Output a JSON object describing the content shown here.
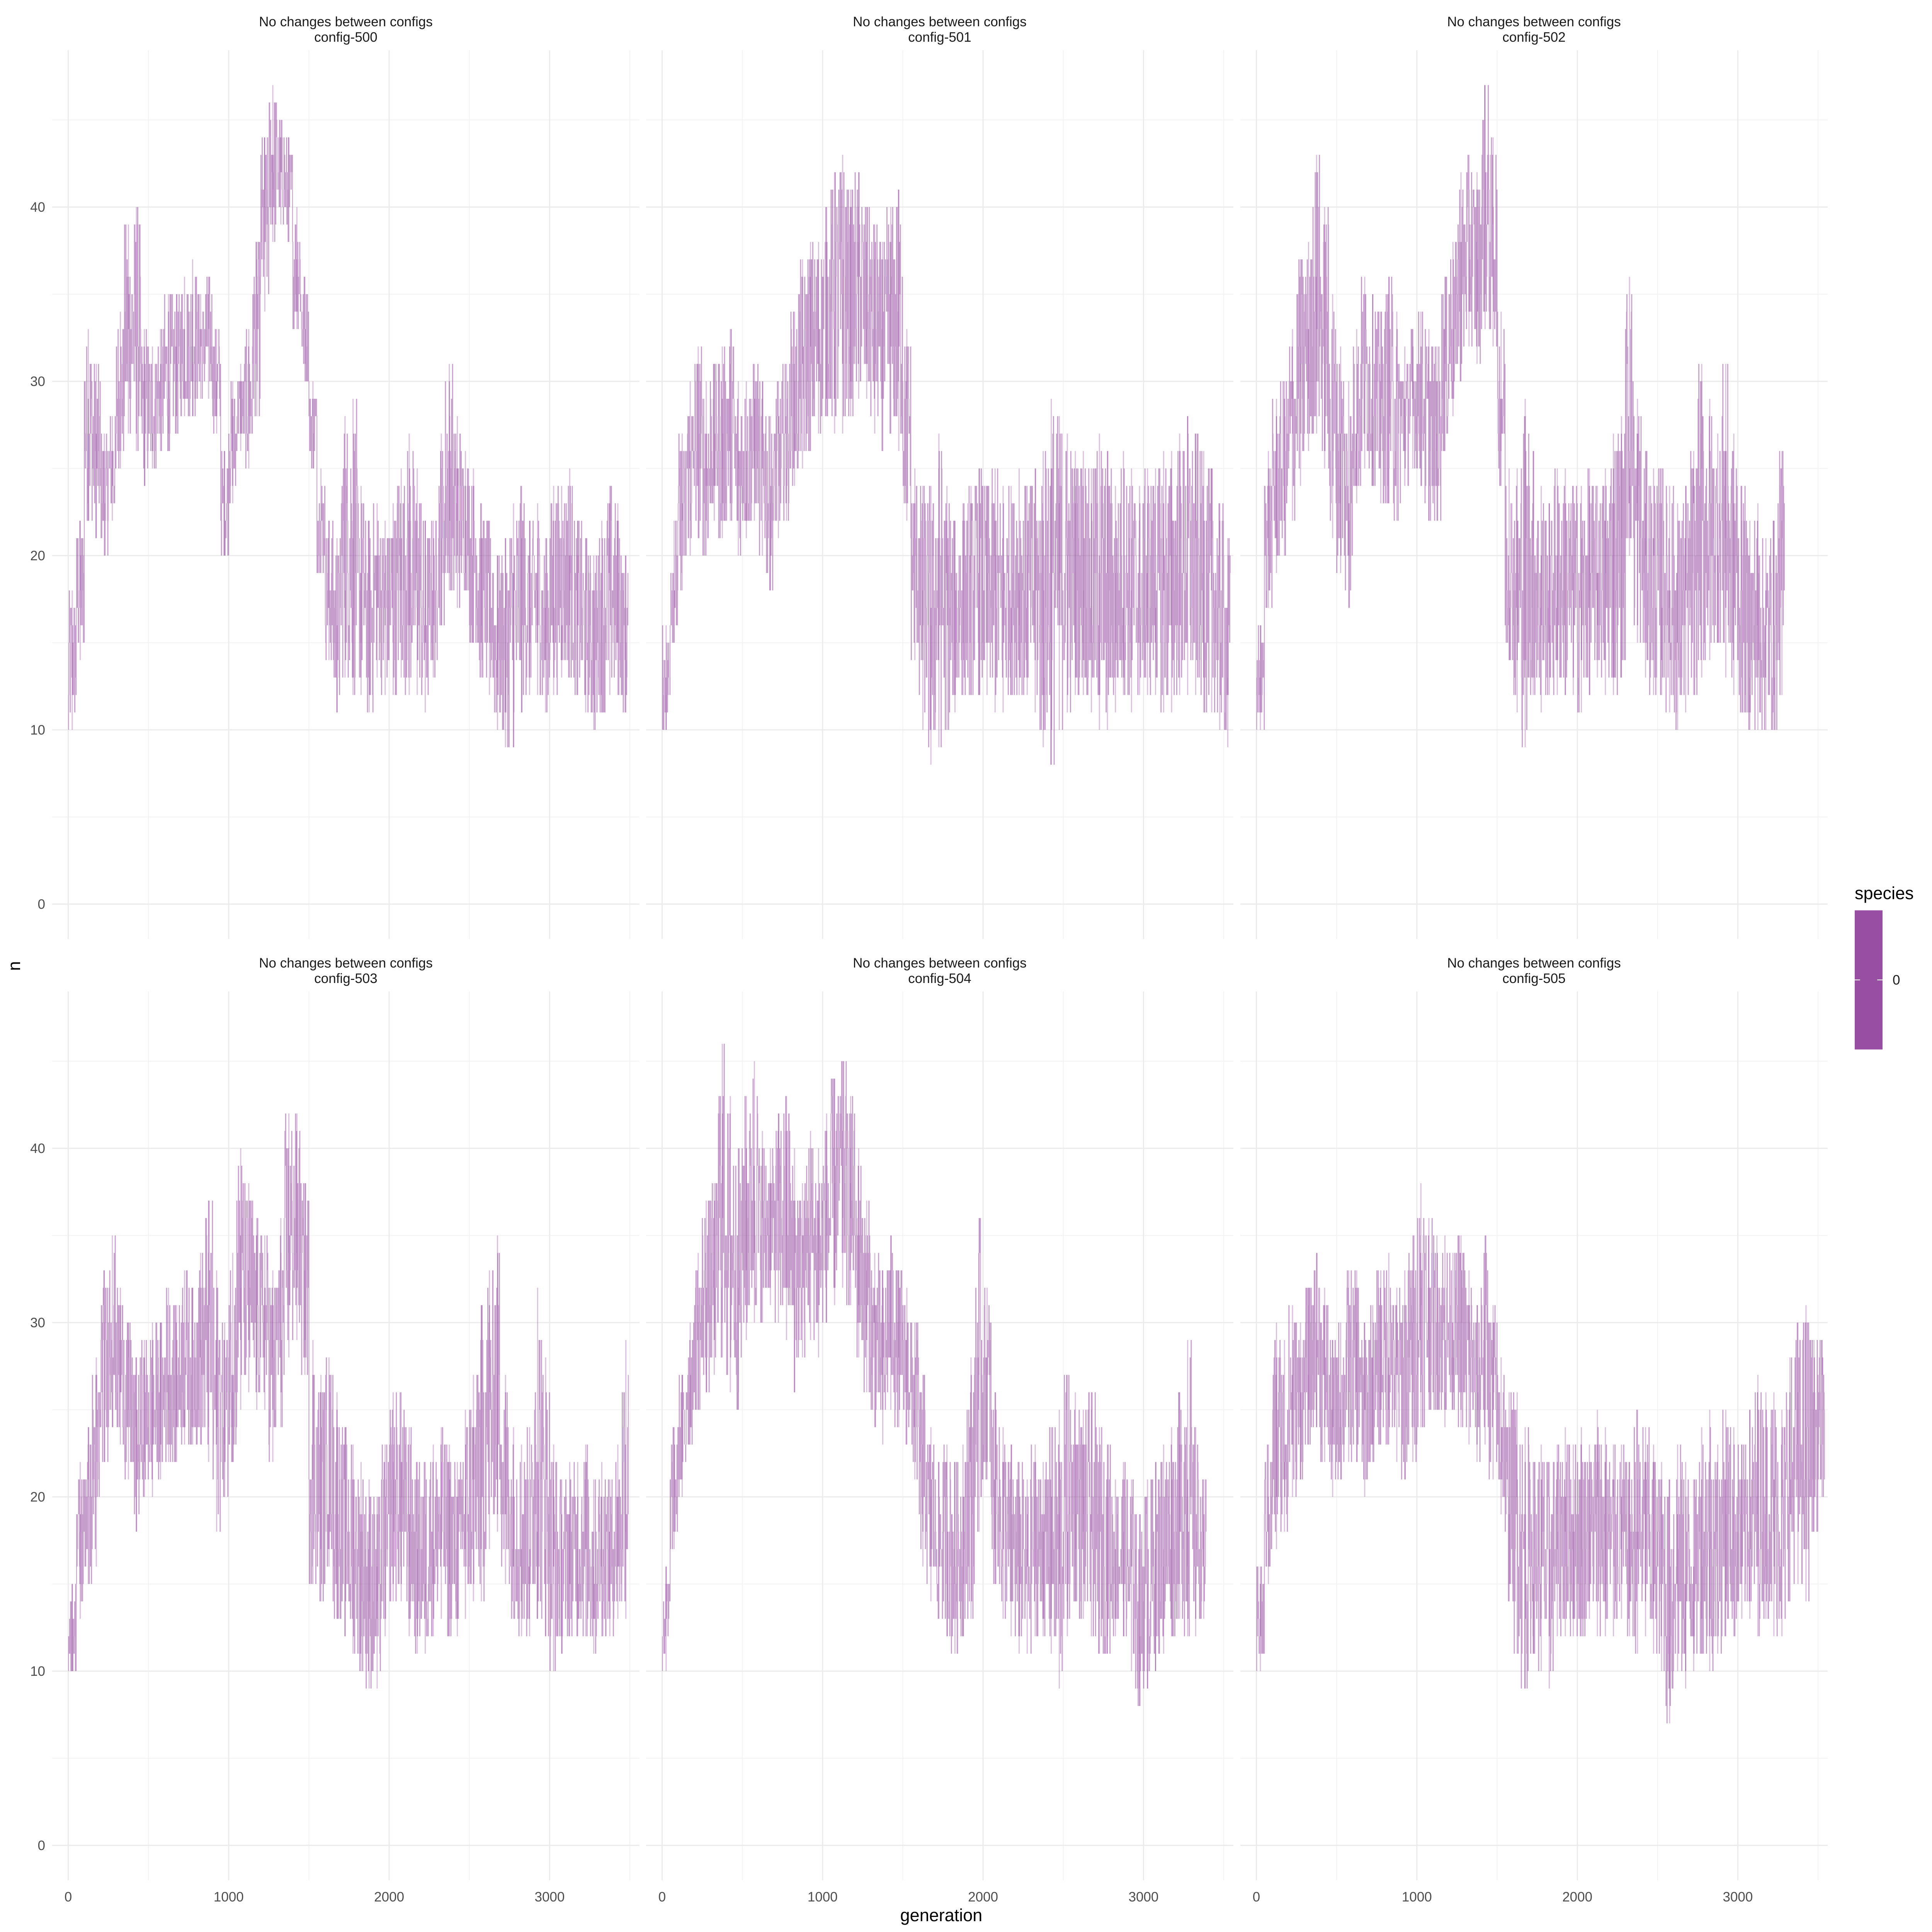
{
  "chart_data": {
    "type": "line",
    "xlabel": "generation",
    "ylabel": "n",
    "xlim": [
      -100,
      3560
    ],
    "ylim": [
      -2,
      49
    ],
    "x_ticks": [
      0,
      1000,
      2000,
      3000
    ],
    "y_ticks": [
      0,
      10,
      20,
      30,
      40
    ],
    "grid": true,
    "color": "#984EA3",
    "legend": {
      "title": "species",
      "labels": [
        "0"
      ],
      "position": "right"
    },
    "panels": [
      {
        "title": "No changes between configs",
        "subtitle": "config-500",
        "x": [
          0,
          50,
          100,
          150,
          200,
          250,
          300,
          350,
          400,
          450,
          500,
          550,
          600,
          650,
          700,
          750,
          800,
          850,
          900,
          950,
          1000,
          1050,
          1100,
          1150,
          1200,
          1250,
          1300,
          1350,
          1400,
          1450,
          1500,
          1550,
          1600,
          1650,
          1700,
          1750,
          1800,
          1850,
          1900,
          1950,
          2000,
          2050,
          2100,
          2150,
          2200,
          2250,
          2300,
          2350,
          2400,
          2450,
          2500,
          2550,
          2600,
          2650,
          2700,
          2750,
          2800,
          2850,
          2900,
          2950,
          3000,
          3050,
          3100,
          3150,
          3200,
          3250,
          3300,
          3350,
          3400,
          3450
        ],
        "low": [
          10,
          14,
          22,
          21,
          20,
          22,
          25,
          27,
          26,
          24,
          25,
          26,
          26,
          27,
          28,
          28,
          29,
          29,
          27,
          20,
          23,
          26,
          25,
          28,
          34,
          38,
          39,
          38,
          33,
          30,
          25,
          19,
          14,
          11,
          13,
          12,
          12,
          11,
          13,
          12,
          12,
          13,
          12,
          12,
          11,
          13,
          16,
          18,
          17,
          18,
          15,
          13,
          12,
          10,
          9,
          9,
          11,
          12,
          12,
          11,
          12,
          13,
          13,
          12,
          11,
          10,
          11,
          12,
          12,
          11
        ],
        "high": [
          18,
          22,
          33,
          31,
          27,
          28,
          34,
          39,
          40,
          33,
          32,
          33,
          35,
          35,
          36,
          37,
          35,
          36,
          33,
          26,
          30,
          31,
          33,
          38,
          44,
          47,
          45,
          44,
          40,
          36,
          30,
          25,
          22,
          21,
          28,
          29,
          24,
          22,
          23,
          22,
          23,
          25,
          27,
          25,
          22,
          22,
          27,
          31,
          28,
          26,
          25,
          23,
          22,
          20,
          21,
          23,
          24,
          22,
          23,
          21,
          24,
          24,
          25,
          22,
          21,
          20,
          22,
          24,
          23,
          20
        ]
      },
      {
        "title": "No changes between configs",
        "subtitle": "config-501",
        "x": [
          0,
          50,
          100,
          150,
          200,
          250,
          300,
          350,
          400,
          450,
          500,
          550,
          600,
          650,
          700,
          750,
          800,
          850,
          900,
          950,
          1000,
          1050,
          1100,
          1150,
          1200,
          1250,
          1300,
          1350,
          1400,
          1450,
          1500,
          1550,
          1600,
          1650,
          1700,
          1750,
          1800,
          1850,
          1900,
          1950,
          2000,
          2050,
          2100,
          2150,
          2200,
          2250,
          2300,
          2350,
          2400,
          2450,
          2500,
          2550,
          2600,
          2650,
          2700,
          2750,
          2800,
          2850,
          2900,
          2950,
          3000,
          3050,
          3100,
          3150,
          3200,
          3250,
          3300,
          3350,
          3400,
          3450,
          3500
        ],
        "low": [
          10,
          15,
          18,
          20,
          21,
          20,
          22,
          21,
          22,
          20,
          21,
          22,
          20,
          18,
          21,
          22,
          24,
          25,
          26,
          27,
          28,
          27,
          27,
          28,
          29,
          29,
          27,
          26,
          27,
          26,
          22,
          14,
          10,
          8,
          9,
          10,
          11,
          12,
          12,
          12,
          12,
          11,
          11,
          12,
          12,
          12,
          11,
          9,
          8,
          10,
          11,
          12,
          12,
          11,
          10,
          10,
          11,
          12,
          11,
          12,
          12,
          12,
          11,
          11,
          12,
          12,
          12,
          11,
          11,
          10,
          9
        ],
        "high": [
          16,
          22,
          27,
          30,
          32,
          30,
          31,
          32,
          33,
          30,
          30,
          31,
          30,
          28,
          30,
          31,
          34,
          37,
          38,
          38,
          40,
          42,
          43,
          41,
          42,
          40,
          39,
          38,
          40,
          41,
          33,
          25,
          24,
          24,
          27,
          24,
          22,
          23,
          24,
          25,
          24,
          25,
          24,
          24,
          25,
          24,
          25,
          26,
          29,
          28,
          27,
          26,
          26,
          25,
          27,
          26,
          24,
          26,
          25,
          24,
          25,
          25,
          26,
          26,
          27,
          28,
          27,
          26,
          25,
          23,
          21
        ]
      },
      {
        "title": "No changes between configs",
        "subtitle": "config-502",
        "x": [
          0,
          50,
          100,
          150,
          200,
          250,
          300,
          350,
          400,
          450,
          500,
          550,
          600,
          650,
          700,
          750,
          800,
          850,
          900,
          950,
          1000,
          1050,
          1100,
          1150,
          1200,
          1250,
          1300,
          1350,
          1400,
          1450,
          1500,
          1550,
          1600,
          1650,
          1700,
          1750,
          1800,
          1850,
          1900,
          1950,
          2000,
          2050,
          2100,
          2150,
          2200,
          2250,
          2300,
          2350,
          2400,
          2450,
          2500,
          2550,
          2600,
          2650,
          2700,
          2750,
          2800,
          2850,
          2900,
          2950,
          3000,
          3050,
          3100,
          3150,
          3200,
          3250
        ],
        "low": [
          10,
          17,
          19,
          20,
          22,
          24,
          26,
          27,
          25,
          21,
          19,
          17,
          23,
          25,
          24,
          23,
          23,
          22,
          24,
          25,
          24,
          22,
          22,
          26,
          28,
          30,
          32,
          31,
          33,
          32,
          24,
          14,
          11,
          9,
          12,
          11,
          12,
          12,
          12,
          12,
          11,
          12,
          13,
          12,
          12,
          13,
          20,
          15,
          13,
          12,
          12,
          11,
          10,
          11,
          12,
          13,
          14,
          15,
          13,
          12,
          11,
          10,
          10,
          10,
          10,
          12
        ],
        "high": [
          16,
          26,
          29,
          30,
          33,
          37,
          38,
          43,
          40,
          35,
          32,
          30,
          33,
          36,
          35,
          34,
          36,
          34,
          32,
          33,
          34,
          33,
          32,
          36,
          38,
          42,
          43,
          42,
          47,
          44,
          34,
          25,
          25,
          29,
          26,
          24,
          23,
          25,
          25,
          24,
          24,
          25,
          24,
          25,
          27,
          28,
          36,
          29,
          26,
          25,
          25,
          24,
          23,
          24,
          26,
          31,
          29,
          27,
          31,
          27,
          24,
          22,
          23,
          21,
          22,
          26
        ]
      },
      {
        "title": "No changes between configs",
        "subtitle": "config-503",
        "x": [
          0,
          50,
          100,
          150,
          200,
          250,
          300,
          350,
          400,
          450,
          500,
          550,
          600,
          650,
          700,
          750,
          800,
          850,
          900,
          950,
          1000,
          1050,
          1100,
          1150,
          1200,
          1250,
          1300,
          1350,
          1400,
          1450,
          1500,
          1550,
          1600,
          1650,
          1700,
          1750,
          1800,
          1850,
          1900,
          1950,
          2000,
          2050,
          2100,
          2150,
          2200,
          2250,
          2300,
          2350,
          2400,
          2450,
          2500,
          2550,
          2600,
          2650,
          2700,
          2750,
          2800,
          2850,
          2900,
          2950,
          3000,
          3050,
          3100,
          3150,
          3200,
          3250,
          3300,
          3350,
          3400,
          3450
        ],
        "low": [
          10,
          13,
          15,
          16,
          22,
          24,
          23,
          21,
          18,
          20,
          20,
          21,
          22,
          22,
          23,
          23,
          23,
          22,
          18,
          20,
          22,
          25,
          26,
          25,
          25,
          22,
          24,
          28,
          29,
          27,
          15,
          14,
          16,
          13,
          12,
          11,
          10,
          9,
          9,
          12,
          14,
          14,
          12,
          11,
          11,
          12,
          13,
          12,
          12,
          13,
          14,
          14,
          17,
          18,
          15,
          13,
          12,
          12,
          13,
          12,
          10,
          11,
          12,
          12,
          12,
          11,
          12,
          12,
          13,
          13
        ],
        "high": [
          15,
          22,
          24,
          28,
          33,
          35,
          32,
          30,
          28,
          29,
          30,
          30,
          32,
          31,
          33,
          32,
          34,
          37,
          33,
          30,
          34,
          40,
          38,
          36,
          35,
          33,
          36,
          42,
          42,
          38,
          29,
          27,
          28,
          26,
          24,
          23,
          22,
          21,
          20,
          23,
          26,
          26,
          24,
          22,
          22,
          23,
          24,
          23,
          22,
          25,
          27,
          31,
          33,
          35,
          27,
          24,
          23,
          24,
          32,
          28,
          23,
          21,
          22,
          22,
          23,
          21,
          22,
          21,
          23,
          29
        ]
      },
      {
        "title": "No changes between configs",
        "subtitle": "config-504",
        "x": [
          0,
          50,
          100,
          150,
          200,
          250,
          300,
          350,
          400,
          450,
          500,
          550,
          600,
          650,
          700,
          750,
          800,
          850,
          900,
          950,
          1000,
          1050,
          1100,
          1150,
          1200,
          1250,
          1300,
          1350,
          1400,
          1450,
          1500,
          1550,
          1600,
          1650,
          1700,
          1750,
          1800,
          1850,
          1900,
          1950,
          2000,
          2050,
          2100,
          2150,
          2200,
          2250,
          2300,
          2350,
          2400,
          2450,
          2500,
          2550,
          2600,
          2650,
          2700,
          2750,
          2800,
          2850,
          2900,
          2950,
          3000,
          3050,
          3100,
          3150,
          3200,
          3250,
          3300,
          3350
        ],
        "low": [
          10,
          17,
          20,
          23,
          25,
          26,
          27,
          28,
          26,
          25,
          29,
          30,
          30,
          31,
          30,
          29,
          26,
          28,
          29,
          28,
          30,
          31,
          32,
          31,
          28,
          26,
          24,
          23,
          25,
          24,
          23,
          21,
          16,
          14,
          13,
          12,
          11,
          12,
          13,
          18,
          21,
          15,
          13,
          12,
          11,
          11,
          12,
          12,
          11,
          9,
          12,
          14,
          13,
          12,
          11,
          11,
          12,
          12,
          10,
          8,
          9,
          10,
          11,
          12,
          13,
          12,
          12,
          13
        ],
        "high": [
          16,
          24,
          27,
          30,
          34,
          37,
          38,
          46,
          43,
          40,
          43,
          45,
          41,
          40,
          42,
          43,
          40,
          38,
          41,
          40,
          42,
          44,
          45,
          43,
          40,
          37,
          34,
          33,
          35,
          33,
          32,
          30,
          27,
          24,
          22,
          23,
          22,
          23,
          28,
          36,
          32,
          26,
          24,
          23,
          22,
          21,
          23,
          22,
          24,
          25,
          27,
          26,
          25,
          26,
          24,
          23,
          21,
          22,
          21,
          19,
          21,
          22,
          23,
          24,
          26,
          29,
          24,
          21
        ]
      },
      {
        "title": "No changes between configs",
        "subtitle": "config-505",
        "x": [
          0,
          50,
          100,
          150,
          200,
          250,
          300,
          350,
          400,
          450,
          500,
          550,
          600,
          650,
          700,
          750,
          800,
          850,
          900,
          950,
          1000,
          1050,
          1100,
          1150,
          1200,
          1250,
          1300,
          1350,
          1400,
          1450,
          1500,
          1550,
          1600,
          1650,
          1700,
          1750,
          1800,
          1850,
          1900,
          1950,
          2000,
          2050,
          2100,
          2150,
          2200,
          2250,
          2300,
          2350,
          2400,
          2450,
          2500,
          2550,
          2600,
          2650,
          2700,
          2750,
          2800,
          2850,
          2900,
          2950,
          3000,
          3050,
          3100,
          3150,
          3200,
          3250,
          3300,
          3350,
          3400,
          3450,
          3500
        ],
        "low": [
          10,
          15,
          17,
          18,
          20,
          21,
          23,
          24,
          22,
          20,
          21,
          22,
          22,
          20,
          22,
          23,
          23,
          22,
          21,
          22,
          24,
          25,
          25,
          24,
          25,
          24,
          23,
          22,
          23,
          21,
          19,
          14,
          11,
          9,
          11,
          10,
          9,
          12,
          12,
          12,
          12,
          13,
          12,
          12,
          12,
          13,
          12,
          11,
          12,
          11,
          10,
          7,
          10,
          9,
          10,
          11,
          10,
          11,
          12,
          12,
          13,
          13,
          12,
          13,
          12,
          12,
          14,
          15,
          14,
          18,
          20
        ],
        "high": [
          16,
          23,
          30,
          29,
          31,
          30,
          32,
          34,
          32,
          29,
          30,
          33,
          33,
          30,
          31,
          33,
          34,
          32,
          33,
          35,
          38,
          36,
          35,
          35,
          34,
          35,
          33,
          31,
          35,
          31,
          28,
          26,
          26,
          24,
          22,
          23,
          22,
          23,
          24,
          23,
          24,
          23,
          25,
          24,
          23,
          23,
          22,
          25,
          24,
          23,
          22,
          21,
          23,
          22,
          21,
          24,
          25,
          23,
          25,
          24,
          23,
          25,
          27,
          26,
          26,
          25,
          28,
          30,
          31,
          29,
          29
        ]
      }
    ]
  }
}
